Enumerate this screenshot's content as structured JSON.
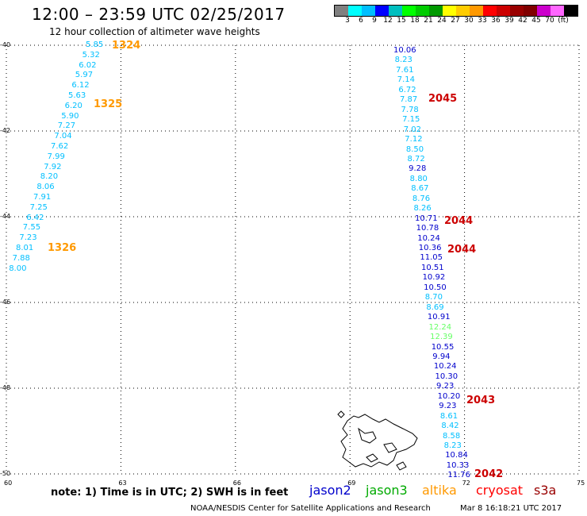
{
  "title": "12:00 – 23:59 UTC 02/25/2017",
  "subtitle": "12 hour collection of altimeter wave heights",
  "legend": {
    "colors": [
      "#808080",
      "#00ffff",
      "#00bfff",
      "#0000ff",
      "#00bfbf",
      "#00ff00",
      "#00cc00",
      "#009900",
      "#ffff00",
      "#ffcc00",
      "#ff9900",
      "#ff0000",
      "#cc0000",
      "#990000",
      "#800000",
      "#cc00cc",
      "#ff66ff",
      "#000000"
    ],
    "labels": [
      "3",
      "6",
      "9",
      "12",
      "15",
      "18",
      "21",
      "24",
      "27",
      "30",
      "33",
      "36",
      "39",
      "42",
      "45",
      "70",
      "(ft)"
    ]
  },
  "axes": {
    "y_ticks": [
      "-40",
      "-42",
      "-44",
      "-46",
      "-48",
      "-50"
    ],
    "x_ticks": [
      "60",
      "63",
      "66",
      "69",
      "72",
      "75"
    ]
  },
  "tracks": [
    {
      "satellite": "altika",
      "color": "#00bfff",
      "values": [
        "5.85",
        "5.32",
        "6.02",
        "5.97",
        "6.12",
        "5.63",
        "6.20",
        "5.90",
        "7.27",
        "7.04",
        "7.62",
        "7.99",
        "7.92",
        "8.20",
        "8.06",
        "7.91",
        "7.25",
        "6.42",
        "7.55",
        "7.23",
        "8.01",
        "7.88",
        "8.00"
      ]
    },
    {
      "satellite": "mixed",
      "values": [
        {
          "v": "10.06",
          "c": "#0000cc"
        },
        {
          "v": "8.23",
          "c": "#00bfff"
        },
        {
          "v": "7.61",
          "c": "#00bfff"
        },
        {
          "v": "7.14",
          "c": "#00bfff"
        },
        {
          "v": "6.72",
          "c": "#00bfff"
        },
        {
          "v": "7.87",
          "c": "#00bfff"
        },
        {
          "v": "7.78",
          "c": "#00bfff"
        },
        {
          "v": "7.15",
          "c": "#00bfff"
        },
        {
          "v": "7.02",
          "c": "#00bfff"
        },
        {
          "v": "7.12",
          "c": "#00bfff"
        },
        {
          "v": "8.50",
          "c": "#00bfff"
        },
        {
          "v": "8.72",
          "c": "#00bfff"
        },
        {
          "v": "9.28",
          "c": "#0000cc"
        },
        {
          "v": "8.80",
          "c": "#00bfff"
        },
        {
          "v": "8.67",
          "c": "#00bfff"
        },
        {
          "v": "8.76",
          "c": "#00bfff"
        },
        {
          "v": "8.26",
          "c": "#00bfff"
        },
        {
          "v": "10.71",
          "c": "#0000cc"
        },
        {
          "v": "10.78",
          "c": "#0000cc"
        },
        {
          "v": "10.24",
          "c": "#0000cc"
        },
        {
          "v": "10.36",
          "c": "#0000cc"
        },
        {
          "v": "11.05",
          "c": "#0000cc"
        },
        {
          "v": "10.51",
          "c": "#0000cc"
        },
        {
          "v": "10.92",
          "c": "#0000cc"
        },
        {
          "v": "10.50",
          "c": "#0000cc"
        },
        {
          "v": "8.70",
          "c": "#00bfff"
        },
        {
          "v": "8.69",
          "c": "#00bfff"
        },
        {
          "v": "10.91",
          "c": "#0000cc"
        },
        {
          "v": "12.24",
          "c": "#66ff66"
        },
        {
          "v": "12.39",
          "c": "#66ff66"
        },
        {
          "v": "10.55",
          "c": "#0000cc"
        },
        {
          "v": "9.94",
          "c": "#0000cc"
        },
        {
          "v": "10.24",
          "c": "#0000cc"
        },
        {
          "v": "10.30",
          "c": "#0000cc"
        },
        {
          "v": "9.23",
          "c": "#0000cc"
        },
        {
          "v": "10.20",
          "c": "#0000cc"
        },
        {
          "v": "9.23",
          "c": "#0000cc"
        },
        {
          "v": "8.61",
          "c": "#00bfff"
        },
        {
          "v": "8.42",
          "c": "#00bfff"
        },
        {
          "v": "8.58",
          "c": "#00bfff"
        },
        {
          "v": "8.23",
          "c": "#00bfff"
        },
        {
          "v": "10.84",
          "c": "#0000cc"
        },
        {
          "v": "10.33",
          "c": "#0000cc"
        },
        {
          "v": "11.76",
          "c": "#0000cc"
        }
      ]
    }
  ],
  "pass_times": [
    {
      "t": "1324",
      "c": "#ff9900"
    },
    {
      "t": "1325",
      "c": "#ff9900"
    },
    {
      "t": "1326",
      "c": "#ff9900"
    },
    {
      "t": "2045",
      "c": "#cc0000"
    },
    {
      "t": "2044",
      "c": "#cc0000"
    },
    {
      "t": "2044",
      "c": "#cc0000"
    },
    {
      "t": "2043",
      "c": "#cc0000"
    },
    {
      "t": "2042",
      "c": "#cc0000"
    }
  ],
  "note": "note: 1) Time is in UTC; 2) SWH is in feet",
  "satellites": [
    {
      "name": "jason2",
      "color": "#0000cc"
    },
    {
      "name": "jason3",
      "color": "#00aa00"
    },
    {
      "name": "altika",
      "color": "#ff9900"
    },
    {
      "name": "cryosat",
      "color": "#ff0000"
    },
    {
      "name": "s3a",
      "color": "#990000"
    }
  ],
  "credit": "NOAA/NESDIS Center for Satellite Applications and Research",
  "timestamp": "Mar  8 16:18:21 UTC 2017"
}
